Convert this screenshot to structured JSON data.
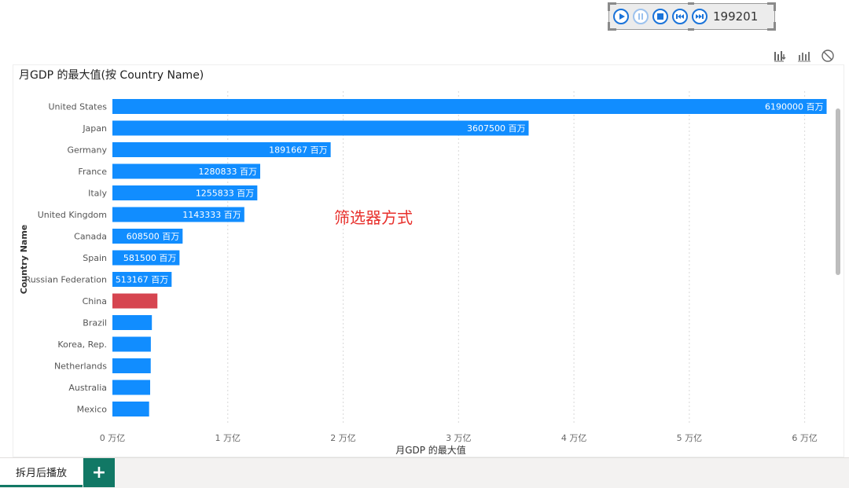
{
  "play_axis": {
    "current_value": "199201"
  },
  "visual_header": {
    "icons": [
      "drill-down-icon",
      "show-data-icon",
      "clear-filter-icon"
    ]
  },
  "annotation": "筛选器方式",
  "tabs": {
    "active_label": "拆月后播放",
    "add_label": "+"
  },
  "colors": {
    "bar": "#118dff",
    "highlight": "#d64550",
    "annotation": "#e8302c",
    "tab_accent": "#117865"
  },
  "chart_data": {
    "type": "bar",
    "orientation": "horizontal",
    "title": "月GDP 的最大值(按 Country Name)",
    "xlabel": "月GDP 的最大值",
    "ylabel": "Country Name",
    "xlim": [
      0,
      6200000
    ],
    "x_ticks": [
      0,
      1000000,
      2000000,
      3000000,
      4000000,
      5000000,
      6000000
    ],
    "x_tick_labels": [
      "0 万亿",
      "1 万亿",
      "2 万亿",
      "3 万亿",
      "4 万亿",
      "5 万亿",
      "6 万亿"
    ],
    "grid": "vertical-dotted",
    "categories": [
      "United States",
      "Japan",
      "Germany",
      "France",
      "Italy",
      "United Kingdom",
      "Canada",
      "Spain",
      "Russian Federation",
      "China",
      "Brazil",
      "Korea, Rep.",
      "Netherlands",
      "Australia",
      "Mexico"
    ],
    "values": [
      6190000,
      3607500,
      1891667,
      1280833,
      1255833,
      1143333,
      608500,
      581500,
      513167,
      390000,
      342000,
      333000,
      332000,
      327000,
      318000
    ],
    "data_labels": [
      "6190000 百万",
      "3607500 百万",
      "1891667 百万",
      "1280833 百万",
      "1255833 百万",
      "1143333 百万",
      "608500 百万",
      "581500 百万",
      "513167 百万",
      "",
      "",
      "",
      "",
      "",
      ""
    ],
    "highlighted_category": "China"
  }
}
